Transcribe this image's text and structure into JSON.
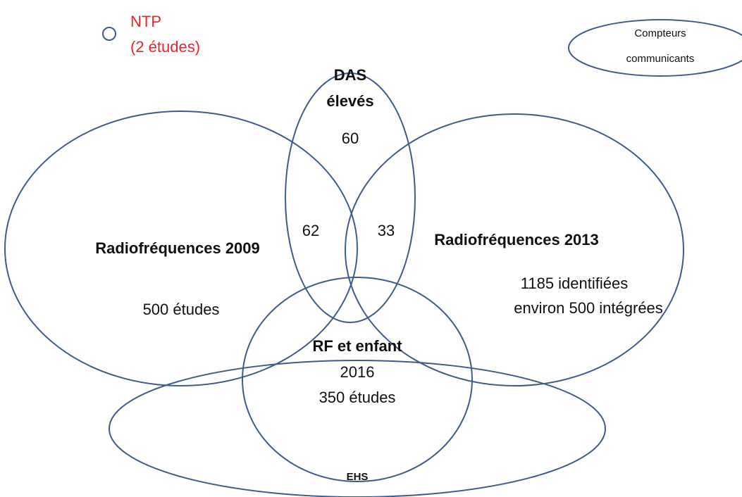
{
  "legend": {
    "ntp": {
      "title": "NTP",
      "subtitle": "(2 études)"
    }
  },
  "sets": [
    {
      "label": "Compteurs",
      "label2": "communicants"
    },
    {
      "label": "DAS",
      "label2": "élevés",
      "count": "60"
    },
    {
      "label": "Radiofréquences 2009",
      "count": "500 études"
    },
    {
      "label": "Radiofréquences 2013",
      "count": "1185 identifiées",
      "count2": "environ 500 intégrées"
    },
    {
      "label": "RF et enfant",
      "year": "2016",
      "count": "350 études"
    },
    {
      "label": "EHS"
    }
  ],
  "intersections": {
    "das_rf2009": "62",
    "das_rf2013": "33"
  }
}
